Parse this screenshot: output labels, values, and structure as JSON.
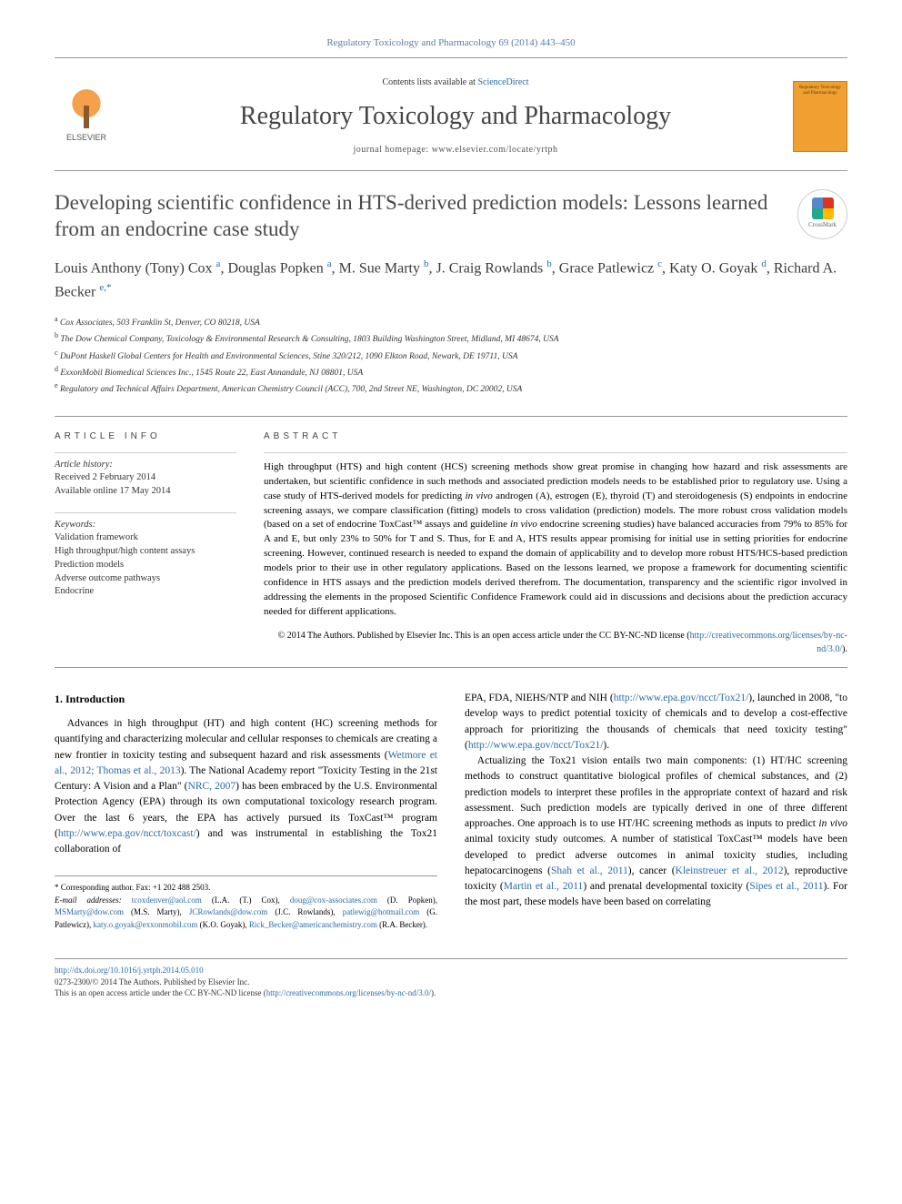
{
  "citation": "Regulatory Toxicology and Pharmacology 69 (2014) 443–450",
  "contents_prefix": "Contents lists available at ",
  "contents_link": "ScienceDirect",
  "journal_name": "Regulatory Toxicology and Pharmacology",
  "homepage_prefix": "journal homepage: ",
  "homepage_url": "www.elsevier.com/locate/yrtph",
  "elsevier_label": "ELSEVIER",
  "cover_text": "Regulatory Toxicology and Pharmacology",
  "crossmark_label": "CrossMark",
  "title": "Developing scientific confidence in HTS-derived prediction models: Lessons learned from an endocrine case study",
  "authors_html": "Louis Anthony (Tony) Cox <sup>a</sup>, Douglas Popken <sup>a</sup>, M. Sue Marty <sup>b</sup>, J. Craig Rowlands <sup>b</sup>, Grace Patlewicz <sup>c</sup>, Katy O. Goyak <sup>d</sup>, Richard A. Becker <sup>e,*</sup>",
  "affiliations": [
    "a Cox Associates, 503 Franklin St, Denver, CO 80218, USA",
    "b The Dow Chemical Company, Toxicology & Environmental Research & Consulting, 1803 Building Washington Street, Midland, MI 48674, USA",
    "c DuPont Haskell Global Centers for Health and Environmental Sciences, Stine 320/212, 1090 Elkton Road, Newark, DE 19711, USA",
    "d ExxonMobil Biomedical Sciences Inc., 1545 Route 22, East Annandale, NJ 08801, USA",
    "e Regulatory and Technical Affairs Department, American Chemistry Council (ACC), 700, 2nd Street NE, Washington, DC 20002, USA"
  ],
  "article_info_heading": "ARTICLE INFO",
  "abstract_heading": "ABSTRACT",
  "history_label": "Article history:",
  "history_received": "Received 2 February 2014",
  "history_online": "Available online 17 May 2014",
  "keywords_label": "Keywords:",
  "keywords": [
    "Validation framework",
    "High throughput/high content assays",
    "Prediction models",
    "Adverse outcome pathways",
    "Endocrine"
  ],
  "abstract": "High throughput (HTS) and high content (HCS) screening methods show great promise in changing how hazard and risk assessments are undertaken, but scientific confidence in such methods and associated prediction models needs to be established prior to regulatory use. Using a case study of HTS-derived models for predicting in vivo androgen (A), estrogen (E), thyroid (T) and steroidogenesis (S) endpoints in endocrine screening assays, we compare classification (fitting) models to cross validation (prediction) models. The more robust cross validation models (based on a set of endocrine ToxCast™ assays and guideline in vivo endocrine screening studies) have balanced accuracies from 79% to 85% for A and E, but only 23% to 50% for T and S. Thus, for E and A, HTS results appear promising for initial use in setting priorities for endocrine screening. However, continued research is needed to expand the domain of applicability and to develop more robust HTS/HCS-based prediction models prior to their use in other regulatory applications. Based on the lessons learned, we propose a framework for documenting scientific confidence in HTS assays and the prediction models derived therefrom. The documentation, transparency and the scientific rigor involved in addressing the elements in the proposed Scientific Confidence Framework could aid in discussions and decisions about the prediction accuracy needed for different applications.",
  "copyright": "© 2014 The Authors. Published by Elsevier Inc. This is an open access article under the CC BY-NC-ND license (",
  "copyright_link": "http://creativecommons.org/licenses/by-nc-nd/3.0/",
  "copyright_suffix": ").",
  "intro_heading": "1. Introduction",
  "col1": {
    "p1_a": "Advances in high throughput (HT) and high content (HC) screening methods for quantifying and characterizing molecular and cellular responses to chemicals are creating a new frontier in toxicity testing and subsequent hazard and risk assessments (",
    "p1_link1": "Wetmore et al., 2012; Thomas et al., 2013",
    "p1_b": "). The National Academy report \"Toxicity Testing in the 21st Century: A Vision and a Plan\" (",
    "p1_link2": "NRC, 2007",
    "p1_c": ") has been embraced by the U.S. Environmental Protection Agency (EPA) through its own computational toxicology research program. Over the last 6 years, the EPA has actively pursued its ToxCast™ program (",
    "p1_link3": "http://www.epa.gov/ncct/toxcast/",
    "p1_d": ") and was instrumental in establishing the Tox21 collaboration of"
  },
  "col2": {
    "p1_a": "EPA, FDA, NIEHS/NTP and NIH (",
    "p1_link1": "http://www.epa.gov/ncct/Tox21/",
    "p1_b": "), launched in 2008, \"to develop ways to predict potential toxicity of chemicals and to develop a cost-effective approach for prioritizing the thousands of chemicals that need toxicity testing\" (",
    "p1_link2": "http://www.epa.gov/ncct/Tox21/",
    "p1_c": ").",
    "p2_a": "Actualizing the Tox21 vision entails two main components: (1) HT/HC screening methods to construct quantitative biological profiles of chemical substances, and (2) prediction models to interpret these profiles in the appropriate context of hazard and risk assessment. Such prediction models are typically derived in one of three different approaches. One approach is to use HT/HC screening methods as inputs to predict in vivo animal toxicity study outcomes. A number of statistical ToxCast™ models have been developed to predict adverse outcomes in animal toxicity studies, including hepatocarcinogens (",
    "p2_link1": "Shah et al., 2011",
    "p2_b": "), cancer (",
    "p2_link2": "Kleinstreuer et al., 2012",
    "p2_c": "), reproductive toxicity (",
    "p2_link3": "Martin et al., 2011",
    "p2_d": ") and prenatal developmental toxicity (",
    "p2_link4": "Sipes et al., 2011",
    "p2_e": "). For the most part, these models have been based on correlating"
  },
  "footnote": {
    "corresp": "* Corresponding author. Fax: +1 202 488 2503.",
    "emails_label": "E-mail addresses:",
    "emails": [
      {
        "e": "tcoxdenver@aol.com",
        "n": " (L.A. (T.) Cox), "
      },
      {
        "e": "doug@cox-associates.com",
        "n": " (D. Popken), "
      },
      {
        "e": "MSMarty@dow.com",
        "n": " (M.S. Marty), "
      },
      {
        "e": "JCRowlands@dow.com",
        "n": " (J.C. Rowlands), "
      },
      {
        "e": "patlewig@hotmail.com",
        "n": " (G. Patlewicz), "
      },
      {
        "e": "katy.o.goyak@exxonmobil.com",
        "n": " (K.O. Goyak), "
      },
      {
        "e": "Rick_Becker@americanchemistry.com",
        "n": " (R.A. Becker)."
      }
    ]
  },
  "footer": {
    "doi": "http://dx.doi.org/10.1016/j.yrtph.2014.05.010",
    "issn_line": "0273-2300/© 2014 The Authors. Published by Elsevier Inc.",
    "license_prefix": "This is an open access article under the CC BY-NC-ND license (",
    "license_link": "http://creativecommons.org/licenses/by-nc-nd/3.0/",
    "license_suffix": ")."
  }
}
